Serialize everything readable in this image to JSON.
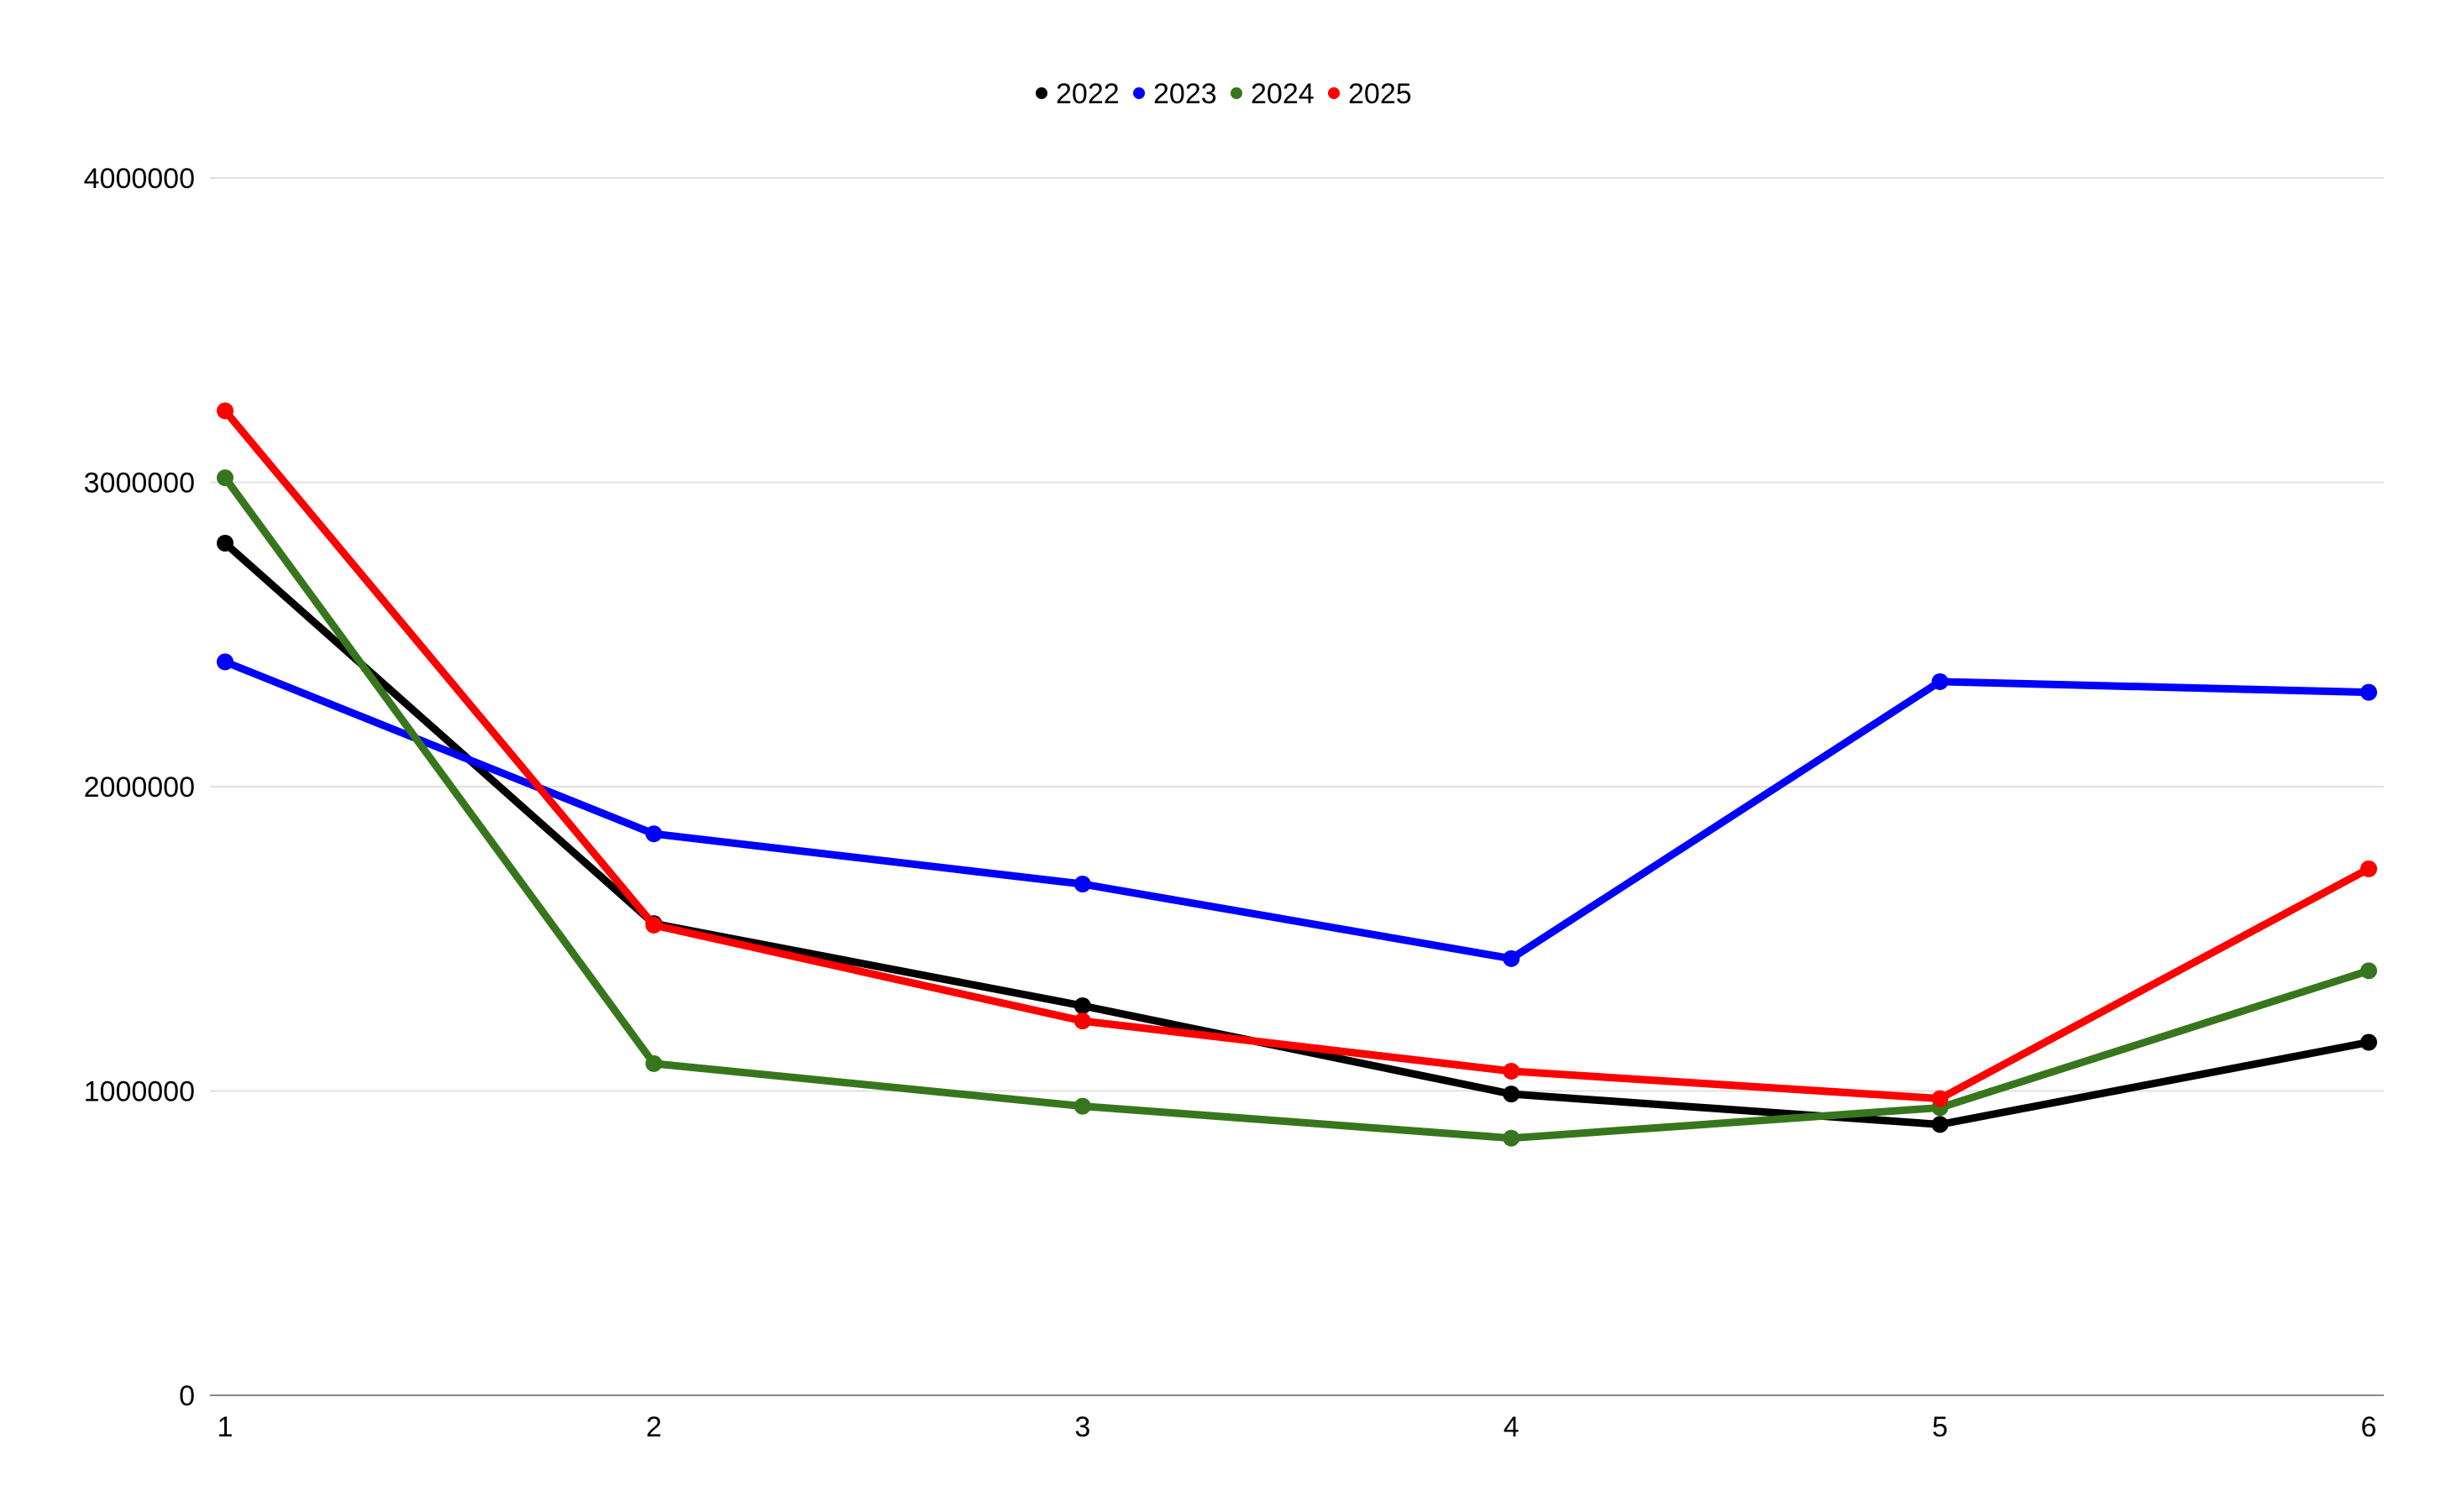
{
  "chart_data": {
    "type": "line",
    "title": "",
    "xlabel": "",
    "ylabel": "",
    "x": [
      "1",
      "2",
      "3",
      "4",
      "5",
      "6"
    ],
    "ylim": [
      0,
      4000000
    ],
    "yticks": [
      "0",
      "1000000",
      "2000000",
      "3000000",
      "4000000"
    ],
    "grid": true,
    "legend_position": "top-center",
    "series": [
      {
        "name": "2022",
        "color": "#000000",
        "values": [
          2800000,
          1550000,
          1280000,
          990000,
          890000,
          1160000
        ]
      },
      {
        "name": "2023",
        "color": "#0000ff",
        "values": [
          2410000,
          1845000,
          1680000,
          1435000,
          2345000,
          2310000
        ]
      },
      {
        "name": "2024",
        "color": "#38761d",
        "values": [
          3015000,
          1090000,
          950000,
          845000,
          945000,
          1395000
        ]
      },
      {
        "name": "2025",
        "color": "#ff0000",
        "values": [
          3235000,
          1545000,
          1230000,
          1065000,
          975000,
          1730000
        ]
      }
    ]
  }
}
